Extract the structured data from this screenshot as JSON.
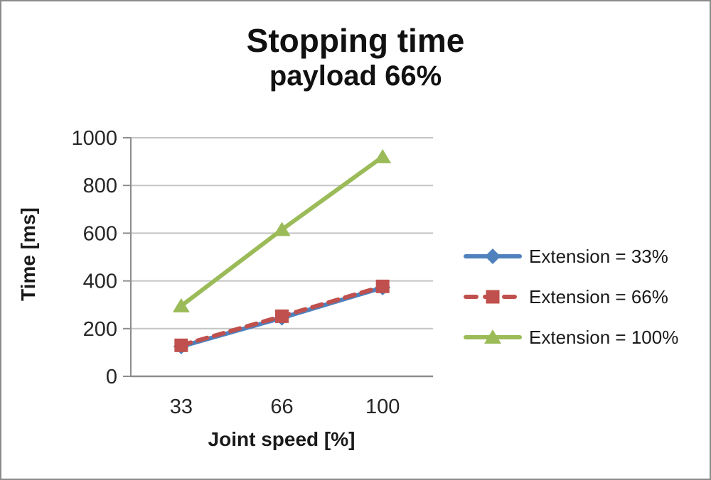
{
  "chart_data": {
    "type": "line",
    "title": "Stopping time",
    "subtitle": "payload 66%",
    "xlabel": "Joint speed [%]",
    "ylabel": "Time [ms]",
    "categories": [
      33,
      66,
      100
    ],
    "x_tick_labels": [
      "33",
      "66",
      "100"
    ],
    "y_ticks": [
      0,
      200,
      400,
      600,
      800,
      1000
    ],
    "ylim": [
      0,
      1000
    ],
    "grid": "horizontal",
    "legend_position": "right",
    "series": [
      {
        "name": "Extension = 33%",
        "values": [
          125,
          245,
          372
        ],
        "color": "#4F81BD",
        "marker": "diamond",
        "line_style": "solid"
      },
      {
        "name": "Extension = 66%",
        "values": [
          130,
          252,
          377
        ],
        "color": "#C0504D",
        "marker": "square",
        "line_style": "dashed"
      },
      {
        "name": "Extension = 100%",
        "values": [
          295,
          615,
          920
        ],
        "color": "#9BBB59",
        "marker": "triangle",
        "line_style": "solid"
      }
    ]
  },
  "colors": {
    "gridline": "#C4C4C4",
    "axis": "#8C8C8C",
    "tick_text": "#262626",
    "title_text": "#111111",
    "frame_border": "#8B8B8B"
  }
}
